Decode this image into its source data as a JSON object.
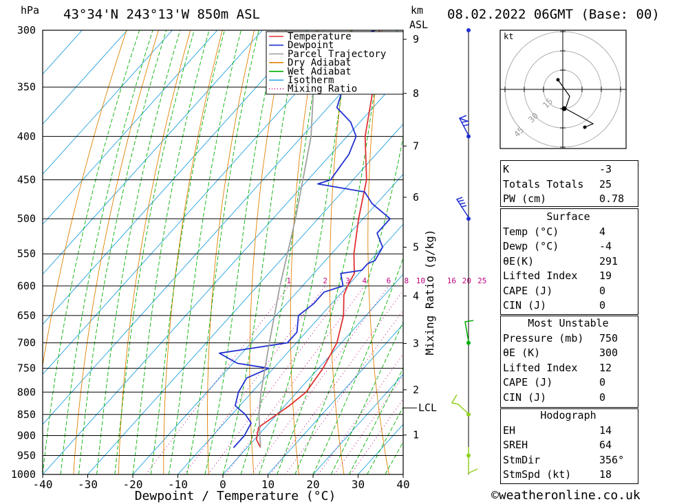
{
  "header": {
    "location": "43°34'N 243°13'W 850m ASL",
    "datetime": "08.02.2022 06GMT (Base: 00)",
    "hpa_unit": "hPa",
    "km_unit": "km",
    "asl_unit": "ASL"
  },
  "legend": [
    "Temperature",
    "Dewpoint",
    "Parcel Trajectory",
    "Dry Adiabat",
    "Wet Adiabat",
    "Isotherm",
    "Mixing Ratio"
  ],
  "colors": {
    "temperature": "#e03030",
    "dewpoint": "#2030d0",
    "parcel": "#a0a0a0",
    "dry_adiabat": "#e08000",
    "wet_adiabat": "#00b000",
    "isotherm": "#20a0e0",
    "mixing_ratio": "#c00080"
  },
  "chart_data": {
    "type": "line",
    "xlabel": "Dewpoint / Temperature (°C)",
    "ylabel_right": "Mixing Ratio (g/kg)",
    "x_ticks": [
      -40,
      -30,
      -20,
      -10,
      0,
      10,
      20,
      30,
      40
    ],
    "pressure_levels": [
      300,
      350,
      400,
      450,
      500,
      550,
      600,
      650,
      700,
      750,
      800,
      850,
      900,
      950,
      1000
    ],
    "km_ticks": [
      1,
      2,
      3,
      4,
      5,
      6,
      7,
      8,
      9
    ],
    "lcl_label": "LCL",
    "mixing_ratio_labels": [
      "1",
      "2",
      "3",
      "4",
      "6",
      "8",
      "10",
      "16",
      "20",
      "25"
    ],
    "mixing_ratio_values": [
      1,
      2,
      3,
      4,
      6,
      8,
      10,
      16,
      20,
      25
    ],
    "series": [
      {
        "name": "Temperature",
        "points": [
          [
            930,
            3
          ],
          [
            910,
            0.5
          ],
          [
            880,
            -1.5
          ],
          [
            850,
            0
          ],
          [
            830,
            1
          ],
          [
            800,
            2
          ],
          [
            750,
            1
          ],
          [
            700,
            -1
          ],
          [
            650,
            -5
          ],
          [
            615,
            -9
          ],
          [
            600,
            -10
          ],
          [
            580,
            -11
          ],
          [
            550,
            -15
          ],
          [
            500,
            -21
          ],
          [
            450,
            -27
          ],
          [
            400,
            -36
          ],
          [
            350,
            -44
          ],
          [
            300,
            -54
          ]
        ]
      },
      {
        "name": "Dewpoint",
        "points": [
          [
            930,
            -3
          ],
          [
            900,
            -3
          ],
          [
            870,
            -4
          ],
          [
            850,
            -7
          ],
          [
            830,
            -11
          ],
          [
            800,
            -13
          ],
          [
            770,
            -14
          ],
          [
            750,
            -11
          ],
          [
            740,
            -19
          ],
          [
            720,
            -25
          ],
          [
            700,
            -12
          ],
          [
            680,
            -12
          ],
          [
            650,
            -15
          ],
          [
            630,
            -14
          ],
          [
            610,
            -14
          ],
          [
            600,
            -11
          ],
          [
            580,
            -14
          ],
          [
            575,
            -10
          ],
          [
            565,
            -10
          ],
          [
            560,
            -9
          ],
          [
            540,
            -10
          ],
          [
            520,
            -14
          ],
          [
            500,
            -14
          ],
          [
            480,
            -21
          ],
          [
            465,
            -25
          ],
          [
            455,
            -37
          ],
          [
            450,
            -35
          ],
          [
            420,
            -36
          ],
          [
            400,
            -38
          ],
          [
            385,
            -42
          ],
          [
            370,
            -48
          ],
          [
            355,
            -50
          ],
          [
            345,
            -38
          ],
          [
            330,
            -55
          ],
          [
            320,
            -52
          ],
          [
            310,
            -60
          ],
          [
            300,
            -55
          ]
        ]
      },
      {
        "name": "Parcel Trajectory",
        "points": [
          [
            930,
            3
          ],
          [
            850,
            -4
          ],
          [
            800,
            -8
          ],
          [
            700,
            -16
          ],
          [
            600,
            -25
          ],
          [
            500,
            -35
          ],
          [
            400,
            -48
          ],
          [
            300,
            -68
          ]
        ]
      }
    ]
  },
  "hodograph": {
    "unit": "kt",
    "ring_labels": [
      "15",
      "30",
      "45"
    ]
  },
  "indices": {
    "rows": [
      {
        "k": "K",
        "v": "-3"
      },
      {
        "k": "Totals Totals",
        "v": "25"
      },
      {
        "k": "PW (cm)",
        "v": "0.78"
      }
    ]
  },
  "surface": {
    "heading": "Surface",
    "rows": [
      {
        "k": "Temp (°C)",
        "v": "4"
      },
      {
        "k": "Dewp (°C)",
        "v": "-4"
      },
      {
        "k": "θE(K)",
        "v": "291"
      },
      {
        "k": "Lifted Index",
        "v": "19"
      },
      {
        "k": "CAPE (J)",
        "v": "0"
      },
      {
        "k": "CIN (J)",
        "v": "0"
      }
    ]
  },
  "most_unstable": {
    "heading": "Most Unstable",
    "rows": [
      {
        "k": "Pressure (mb)",
        "v": "750"
      },
      {
        "k": "θE (K)",
        "v": "300"
      },
      {
        "k": "Lifted Index",
        "v": "12"
      },
      {
        "k": "CAPE (J)",
        "v": "0"
      },
      {
        "k": "CIN (J)",
        "v": "0"
      }
    ]
  },
  "hodograph_stats": {
    "heading": "Hodograph",
    "rows": [
      {
        "k": "EH",
        "v": "14"
      },
      {
        "k": "SREH",
        "v": "64"
      },
      {
        "k": "StmDir",
        "v": "356°"
      },
      {
        "k": "StmSpd (kt)",
        "v": "18"
      }
    ]
  },
  "credit": "©weatheronline.co.uk"
}
